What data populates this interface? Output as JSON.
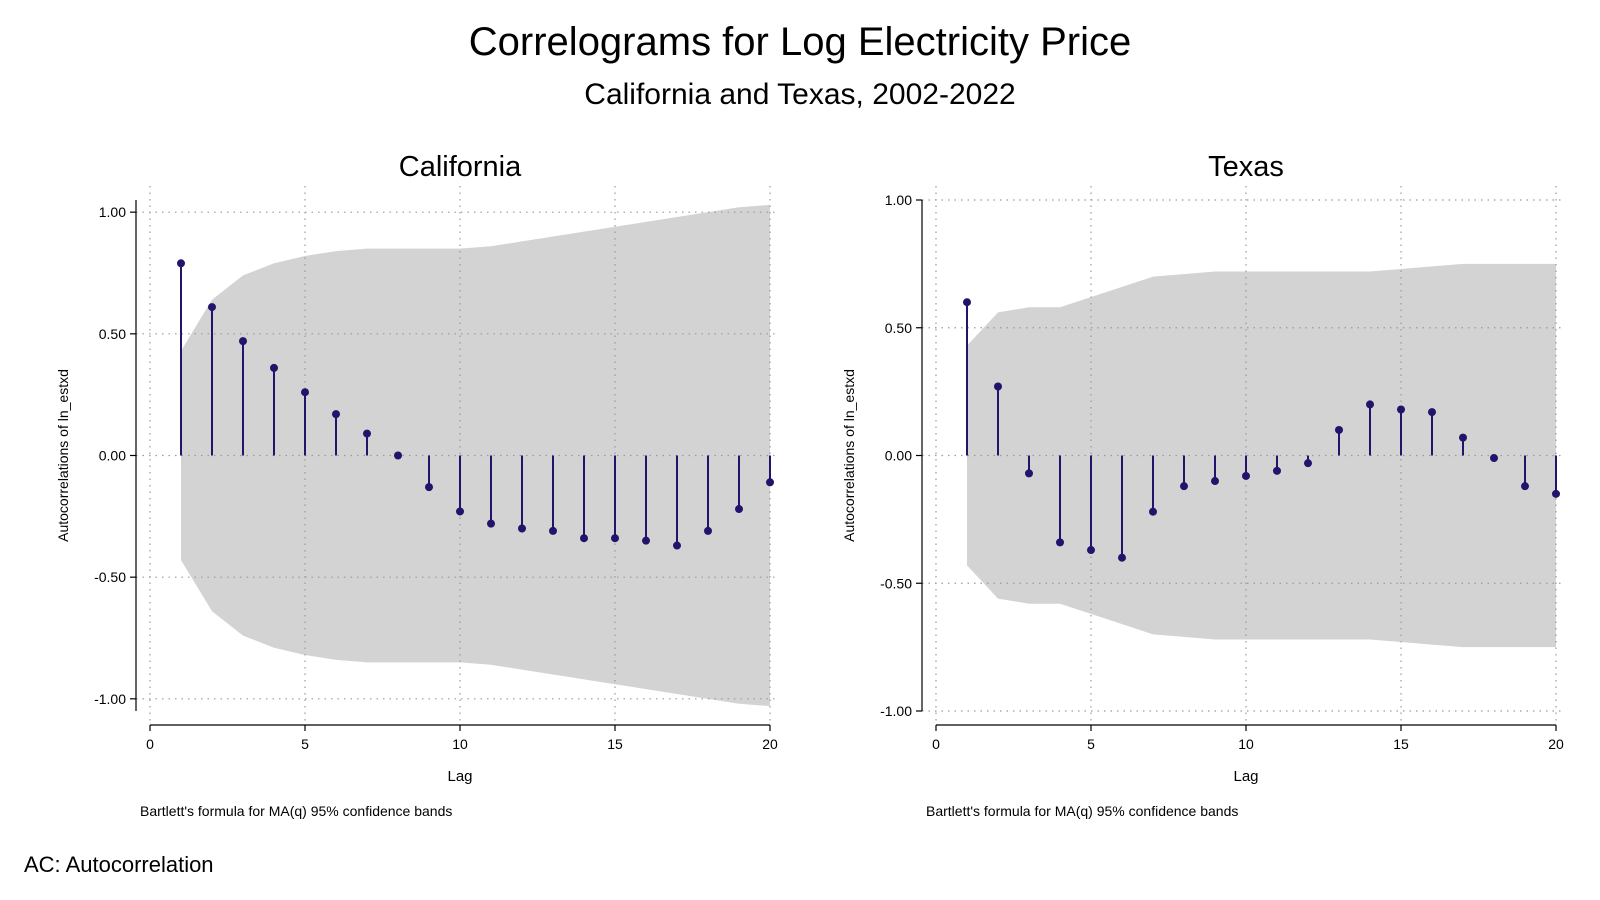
{
  "title": "Correlograms for Log Electricity Price",
  "subtitle": "California and Texas, 2002-2022",
  "note": "AC: Autocorrelation",
  "colors": {
    "stem": "#24126b",
    "band": "#d3d3d3",
    "grid": "#9a9a9a"
  },
  "chart_data": [
    {
      "type": "correlogram",
      "title": "California",
      "xlabel": "Lag",
      "ylabel": "Autocorrelations of ln_estxd",
      "footnote": "Bartlett's formula for MA(q) 95% confidence bands",
      "xlim": [
        0,
        20
      ],
      "ylim": [
        -1.05,
        1.05
      ],
      "xticks": [
        "0",
        "5",
        "10",
        "15",
        "20"
      ],
      "yticks": [
        "-1.00",
        "-0.50",
        "0.00",
        "0.50",
        "1.00"
      ],
      "grid": true,
      "lags": [
        1,
        2,
        3,
        4,
        5,
        6,
        7,
        8,
        9,
        10,
        11,
        12,
        13,
        14,
        15,
        16,
        17,
        18,
        19,
        20
      ],
      "values": [
        0.79,
        0.61,
        0.47,
        0.36,
        0.26,
        0.17,
        0.09,
        0.0,
        -0.13,
        -0.23,
        -0.28,
        -0.3,
        -0.31,
        -0.34,
        -0.34,
        -0.35,
        -0.37,
        -0.31,
        -0.22,
        -0.11
      ],
      "band_upper": [
        0.43,
        0.64,
        0.74,
        0.79,
        0.82,
        0.84,
        0.85,
        0.85,
        0.85,
        0.85,
        0.86,
        0.88,
        0.9,
        0.92,
        0.94,
        0.96,
        0.98,
        1.0,
        1.02,
        1.03
      ]
    },
    {
      "type": "correlogram",
      "title": "Texas",
      "xlabel": "Lag",
      "ylabel": "Autocorrelations of ln_estxd",
      "footnote": "Bartlett's formula for MA(q) 95% confidence bands",
      "xlim": [
        0,
        20
      ],
      "ylim": [
        -1.0,
        1.0
      ],
      "xticks": [
        "0",
        "5",
        "10",
        "15",
        "20"
      ],
      "yticks": [
        "-1.00",
        "-0.50",
        "0.00",
        "0.50",
        "1.00"
      ],
      "grid": true,
      "lags": [
        1,
        2,
        3,
        4,
        5,
        6,
        7,
        8,
        9,
        10,
        11,
        12,
        13,
        14,
        15,
        16,
        17,
        18,
        19,
        20
      ],
      "values": [
        0.6,
        0.27,
        -0.07,
        -0.34,
        -0.37,
        -0.4,
        -0.22,
        -0.12,
        -0.1,
        -0.08,
        -0.06,
        -0.03,
        0.1,
        0.2,
        0.18,
        0.17,
        0.07,
        -0.01,
        -0.12,
        -0.15
      ],
      "band_upper": [
        0.43,
        0.56,
        0.58,
        0.58,
        0.62,
        0.66,
        0.7,
        0.71,
        0.72,
        0.72,
        0.72,
        0.72,
        0.72,
        0.72,
        0.73,
        0.74,
        0.75,
        0.75,
        0.75,
        0.75
      ]
    }
  ]
}
